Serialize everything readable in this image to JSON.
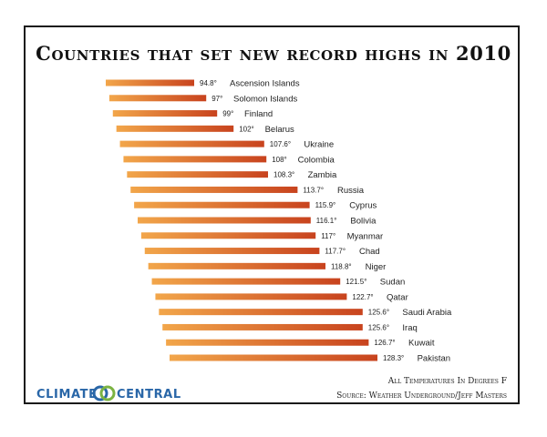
{
  "title": "Countries that set new record highs in 2010",
  "note": "All Temperatures In Degrees F",
  "source": "Source: Weather Underground/Jeff Masters",
  "logo": {
    "left": "CLIMATE",
    "right": "CENTRAL",
    "color": "#2a67a8"
  },
  "colors": {
    "bar_start": "#f2a64a",
    "bar_end": "#c8431e",
    "frame": "#1a1a1a"
  },
  "chart_data": {
    "type": "bar",
    "orientation": "horizontal",
    "title": "Countries that set new record highs in 2010",
    "unit": "°F",
    "categories": [
      "Ascension Islands",
      "Solomon Islands",
      "Finland",
      "Belarus",
      "Ukraine",
      "Colombia",
      "Zambia",
      "Russia",
      "Cyprus",
      "Bolivia",
      "Myanmar",
      "Chad",
      "Niger",
      "Sudan",
      "Qatar",
      "Saudi Arabia",
      "Iraq",
      "Kuwait",
      "Pakistan"
    ],
    "values": [
      94.8,
      97,
      99,
      102,
      107.6,
      108,
      108.3,
      113.7,
      115.9,
      116.1,
      117,
      117.7,
      118.8,
      121.5,
      122.7,
      125.6,
      125.6,
      126.7,
      128.3
    ],
    "value_labels": [
      "94.8°",
      "97°",
      "99°",
      "102°",
      "107.6°",
      "108°",
      "108.3°",
      "113.7°",
      "115.9°",
      "116.1°",
      "117°",
      "117.7°",
      "118.8°",
      "121.5°",
      "122.7°",
      "125.6°",
      "125.6°",
      "126.7°",
      "128.3°"
    ]
  }
}
